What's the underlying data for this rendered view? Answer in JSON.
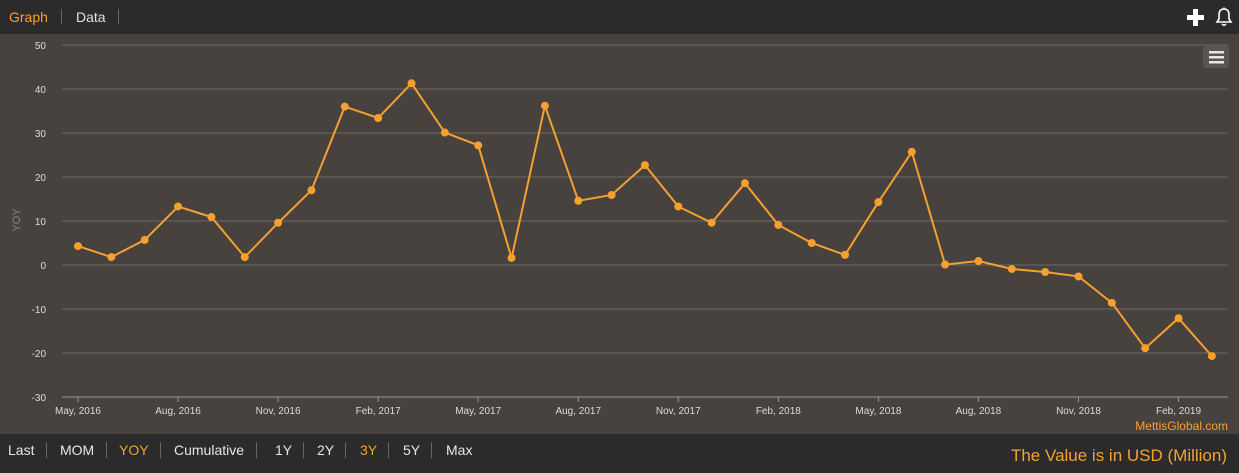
{
  "tabs": {
    "graph": "Graph",
    "data": "Data"
  },
  "icons": {
    "add": "plus-icon",
    "alert": "bell-icon",
    "menu": "hamburger-menu-icon"
  },
  "colors": {
    "accent": "#f7a030",
    "plot_bg": "#47423d",
    "bar_bg": "#2b2b2b"
  },
  "ranges": [
    {
      "label": "Last",
      "active": false
    },
    {
      "label": "MOM",
      "active": false
    },
    {
      "label": "YOY",
      "active": true
    },
    {
      "label": "Cumulative",
      "active": false
    },
    {
      "label": "1Y",
      "active": false
    },
    {
      "label": "2Y",
      "active": false
    },
    {
      "label": "3Y",
      "active": true
    },
    {
      "label": "5Y",
      "active": false
    },
    {
      "label": "Max",
      "active": false
    }
  ],
  "unit_note": "The Value is in USD (Million)",
  "credit": "MettisGlobal.com",
  "chart_data": {
    "type": "line",
    "ylabel": "YOY",
    "ylim": [
      -30,
      50
    ],
    "yticks": [
      -30,
      -20,
      -10,
      0,
      10,
      20,
      30,
      40,
      50
    ],
    "xticks": [
      {
        "label": "May, 2016",
        "index": 0
      },
      {
        "label": "Aug, 2016",
        "index": 3
      },
      {
        "label": "Nov, 2016",
        "index": 6
      },
      {
        "label": "Feb, 2017",
        "index": 9
      },
      {
        "label": "May, 2017",
        "index": 12
      },
      {
        "label": "Aug, 2017",
        "index": 15
      },
      {
        "label": "Nov, 2017",
        "index": 18
      },
      {
        "label": "Feb, 2018",
        "index": 21
      },
      {
        "label": "May, 2018",
        "index": 24
      },
      {
        "label": "Aug, 2018",
        "index": 27
      },
      {
        "label": "Nov, 2018",
        "index": 30
      },
      {
        "label": "Feb, 2019",
        "index": 33
      }
    ],
    "grid": true,
    "series": [
      {
        "name": "",
        "x": [
          "2016-05",
          "2016-06",
          "2016-07",
          "2016-08",
          "2016-09",
          "2016-10",
          "2016-11",
          "2016-12",
          "2017-01",
          "2017-02",
          "2017-03",
          "2017-04",
          "2017-05",
          "2017-06",
          "2017-07",
          "2017-08",
          "2017-09",
          "2017-10",
          "2017-11",
          "2017-12",
          "2018-01",
          "2018-02",
          "2018-03",
          "2018-04",
          "2018-05",
          "2018-06",
          "2018-07",
          "2018-08",
          "2018-09",
          "2018-10",
          "2018-11",
          "2018-12",
          "2019-01",
          "2019-02",
          "2019-03"
        ],
        "values": [
          4.3,
          1.8,
          5.7,
          13.3,
          10.9,
          1.8,
          9.6,
          17.0,
          36.0,
          33.4,
          41.3,
          30.1,
          27.2,
          1.6,
          36.2,
          14.6,
          15.9,
          22.7,
          13.3,
          9.6,
          18.6,
          9.1,
          5.0,
          2.3,
          14.3,
          25.7,
          0.1,
          0.9,
          -0.9,
          -1.6,
          -2.6,
          -8.6,
          -18.9,
          -12.1,
          -20.7
        ]
      }
    ]
  }
}
